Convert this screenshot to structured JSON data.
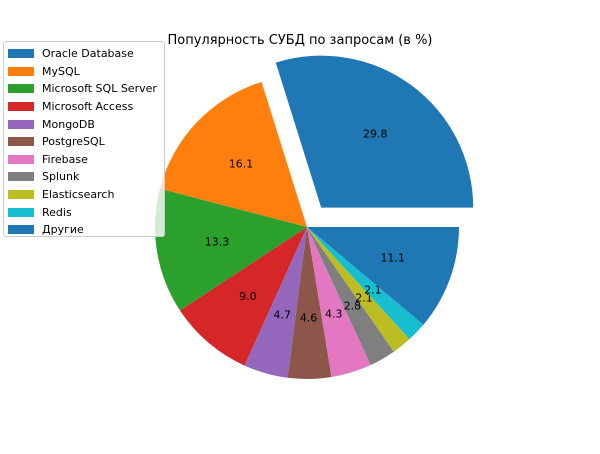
{
  "chart_data": {
    "type": "pie",
    "title": "Популярность СУБД по запросам (в %)",
    "categories": [
      "Oracle Database",
      "MySQL",
      "Microsoft SQL Server",
      "Microsoft Access",
      "MongoDB",
      "PostgreSQL",
      "Firebase",
      "Splunk",
      "Elasticsearch",
      "Redis",
      "Другие"
    ],
    "values": [
      29.8,
      16.1,
      13.3,
      9.0,
      4.7,
      4.6,
      4.3,
      2.8,
      2.1,
      2.1,
      11.1
    ],
    "labels": [
      "29.8",
      "16.1",
      "13.3",
      "9.0",
      "4.7",
      "4.6",
      "4.3",
      "2.8",
      "2.1",
      "2.1",
      "11.1"
    ],
    "colors": [
      "#1f77b4",
      "#ff7f0e",
      "#2ca02c",
      "#d62728",
      "#9467bd",
      "#8c564b",
      "#e377c2",
      "#7f7f7f",
      "#bcbd22",
      "#17becf",
      "#1f77b4"
    ],
    "exploded": [
      "Oracle Database"
    ],
    "legend_position": "upper-left"
  }
}
